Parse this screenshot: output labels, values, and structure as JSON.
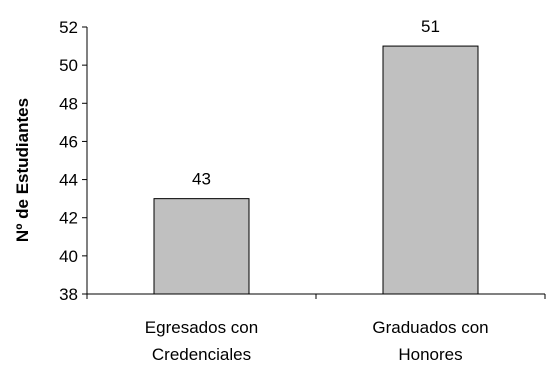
{
  "chart_data": {
    "type": "bar",
    "title": "",
    "xlabel": "",
    "ylabel": "Nº de Estudiantes",
    "categories": [
      [
        "Egresados con",
        "Credenciales"
      ],
      [
        "Graduados con",
        "Honores"
      ]
    ],
    "values": [
      43,
      51
    ],
    "data_labels": [
      "43",
      "51"
    ],
    "ylim": [
      38,
      52
    ],
    "yticks": [
      38,
      40,
      42,
      44,
      46,
      48,
      50,
      52
    ],
    "grid": false,
    "legend": "none",
    "bar_color": "#c0c0c0",
    "bar_edge_color": "#000000"
  }
}
